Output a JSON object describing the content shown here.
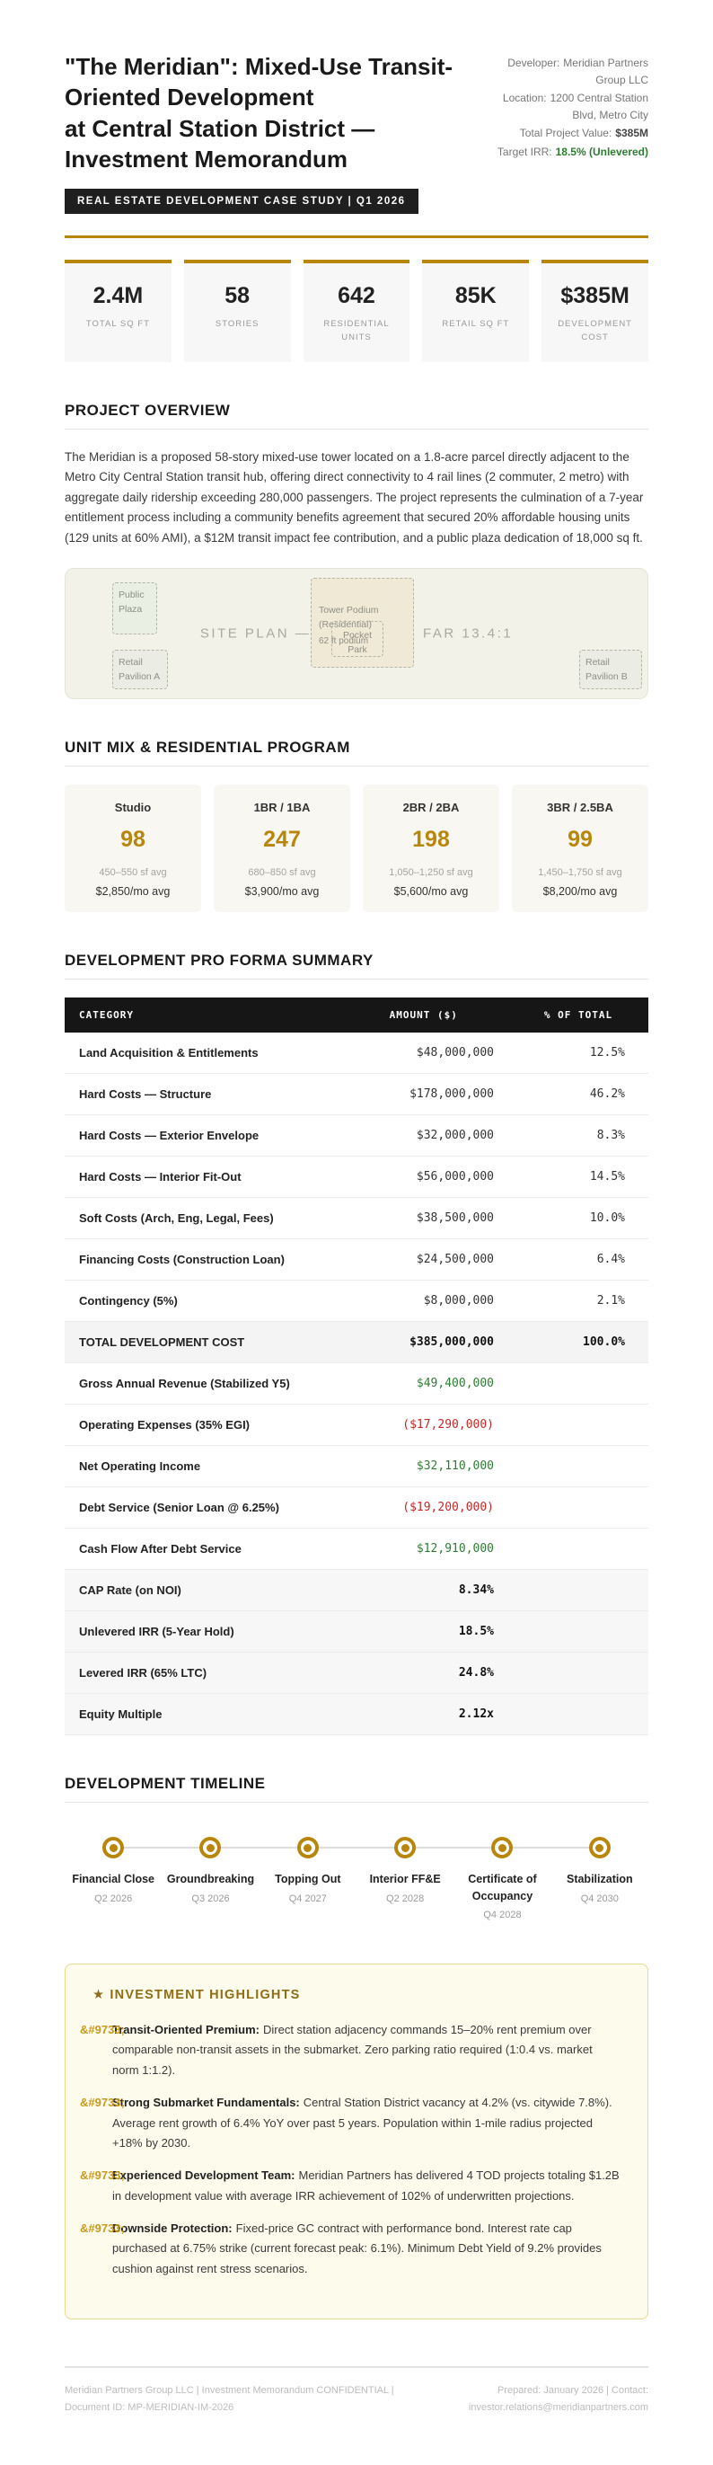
{
  "colors": {
    "accent_gold": "#b8860b",
    "header_dark": "#1a1a1a",
    "positive_green": "#2e7d32",
    "negative_red": "#c62828",
    "highlight_bg": "#fdfbec"
  },
  "header": {
    "title_line1": "\"The Meridian\": Mixed-Use Transit-Oriented Development",
    "title_line2": "at Central Station District — Investment Memorandum",
    "badge": "REAL ESTATE DEVELOPMENT CASE STUDY | Q1 2026",
    "meta": [
      {
        "label": "Developer:",
        "value": "Meridian Partners Group LLC",
        "style": "plain"
      },
      {
        "label": "Location:",
        "value": "1200 Central Station Blvd, Metro City",
        "style": "plain"
      },
      {
        "label": "Total Project Value:",
        "value": "$385M",
        "style": "bold"
      },
      {
        "label": "Target IRR:",
        "value": "18.5% (Unlevered)",
        "style": "green"
      }
    ]
  },
  "stats": [
    {
      "value": "2.4M",
      "label": "TOTAL SQ FT"
    },
    {
      "value": "58",
      "label": "STORIES"
    },
    {
      "value": "642",
      "label": "RESIDENTIAL UNITS"
    },
    {
      "value": "85K",
      "label": "RETAIL SQ FT"
    },
    {
      "value": "$385M",
      "label": "DEVELOPMENT COST"
    }
  ],
  "overview": {
    "title": "PROJECT OVERVIEW",
    "body": "The Meridian is a proposed 58-story mixed-use tower located on a 1.8-acre parcel directly adjacent to the Metro City Central Station transit hub, offering direct connectivity to 4 rail lines (2 commuter, 2 metro) with aggregate daily ridership exceeding 280,000 passengers. The project represents the culmination of a 7-year entitlement process including a community benefits agreement that secured 20% affordable housing units (129 units at 60% AMI), a $12M transit impact fee contribution, and a public plaza dedication of 18,000 sq ft."
  },
  "site_plan": {
    "caption": "SITE PLAN — 1.8 ACRES | FAR 13.4:1",
    "public_plaza": "Public Plaza",
    "tower_title": "Tower Podium (Residential)",
    "tower_sub": "62 ft podium",
    "pocket_park": "Pocket Park",
    "retail_a": "Retail Pavilion A",
    "retail_b": "Retail Pavilion B"
  },
  "unit_mix": {
    "title": "UNIT MIX & RESIDENTIAL PROGRAM",
    "units": [
      {
        "type": "Studio",
        "count": "98",
        "size": "450–550 sf avg",
        "rent": "$2,850/mo avg"
      },
      {
        "type": "1BR / 1BA",
        "count": "247",
        "size": "680–850 sf avg",
        "rent": "$3,900/mo avg"
      },
      {
        "type": "2BR / 2BA",
        "count": "198",
        "size": "1,050–1,250 sf avg",
        "rent": "$5,600/mo avg"
      },
      {
        "type": "3BR / 2.5BA",
        "count": "99",
        "size": "1,450–1,750 sf avg",
        "rent": "$8,200/mo avg"
      }
    ]
  },
  "pro_forma": {
    "title": "DEVELOPMENT PRO FORMA SUMMARY",
    "columns": [
      "CATEGORY",
      "AMOUNT ($)",
      "% OF TOTAL"
    ],
    "rows": [
      {
        "category": "Land Acquisition & Entitlements",
        "amount": "$48,000,000",
        "pct": "12.5%",
        "style": "plain"
      },
      {
        "category": "Hard Costs — Structure",
        "amount": "$178,000,000",
        "pct": "46.2%",
        "style": "plain"
      },
      {
        "category": "Hard Costs — Exterior Envelope",
        "amount": "$32,000,000",
        "pct": "8.3%",
        "style": "plain"
      },
      {
        "category": "Hard Costs — Interior Fit-Out",
        "amount": "$56,000,000",
        "pct": "14.5%",
        "style": "plain"
      },
      {
        "category": "Soft Costs (Arch, Eng, Legal, Fees)",
        "amount": "$38,500,000",
        "pct": "10.0%",
        "style": "plain"
      },
      {
        "category": "Financing Costs (Construction Loan)",
        "amount": "$24,500,000",
        "pct": "6.4%",
        "style": "plain"
      },
      {
        "category": "Contingency (5%)",
        "amount": "$8,000,000",
        "pct": "2.1%",
        "style": "plain"
      },
      {
        "category": "TOTAL DEVELOPMENT COST",
        "amount": "$385,000,000",
        "pct": "100.0%",
        "style": "total"
      },
      {
        "category": "Gross Annual Revenue (Stabilized Y5)",
        "amount": "$49,400,000",
        "pct": "",
        "style": "green"
      },
      {
        "category": "Operating Expenses (35% EGI)",
        "amount": "($17,290,000)",
        "pct": "",
        "style": "red"
      },
      {
        "category": "Net Operating Income",
        "amount": "$32,110,000",
        "pct": "",
        "style": "green"
      },
      {
        "category": "Debt Service (Senior Loan @ 6.25%)",
        "amount": "($19,200,000)",
        "pct": "",
        "style": "red"
      },
      {
        "category": "Cash Flow After Debt Service",
        "amount": "$12,910,000",
        "pct": "",
        "style": "green"
      },
      {
        "category": "CAP Rate (on NOI)",
        "amount": "8.34%",
        "pct": "",
        "style": "metric"
      },
      {
        "category": "Unlevered IRR (5-Year Hold)",
        "amount": "18.5%",
        "pct": "",
        "style": "metric"
      },
      {
        "category": "Levered IRR (65% LTC)",
        "amount": "24.8%",
        "pct": "",
        "style": "metric"
      },
      {
        "category": "Equity Multiple",
        "amount": "2.12x",
        "pct": "",
        "style": "metric"
      }
    ]
  },
  "timeline": {
    "title": "DEVELOPMENT TIMELINE",
    "milestones": [
      {
        "label": "Financial Close",
        "date": "Q2 2026"
      },
      {
        "label": "Groundbreaking",
        "date": "Q3 2026"
      },
      {
        "label": "Topping Out",
        "date": "Q4 2027"
      },
      {
        "label": "Interior FF&E",
        "date": "Q2 2028"
      },
      {
        "label": "Certificate of Occupancy",
        "date": "Q4 2028"
      },
      {
        "label": "Stabilization",
        "date": "Q4 2030"
      }
    ]
  },
  "highlights": {
    "title": "★ INVESTMENT HIGHLIGHTS",
    "marker": "&#9733;",
    "items": [
      {
        "label": "Transit-Oriented Premium:",
        "text": "Direct station adjacency commands 15–20% rent premium over comparable non-transit assets in the submarket. Zero parking ratio required (1:0.4 vs. market norm 1:1.2)."
      },
      {
        "label": "Strong Submarket Fundamentals:",
        "text": "Central Station District vacancy at 4.2% (vs. citywide 7.8%). Average rent growth of 6.4% YoY over past 5 years. Population within 1-mile radius projected +18% by 2030."
      },
      {
        "label": "Experienced Development Team:",
        "text": "Meridian Partners has delivered 4 TOD projects totaling $1.2B in development value with average IRR achievement of 102% of underwritten projections."
      },
      {
        "label": "Downside Protection:",
        "text": "Fixed-price GC contract with performance bond. Interest rate cap purchased at 6.75% strike (current forecast peak: 6.1%). Minimum Debt Yield of 9.2% provides cushion against rent stress scenarios."
      }
    ]
  },
  "footer": {
    "left": "Meridian Partners Group LLC | Investment Memorandum CONFIDENTIAL | Document ID: MP-MERIDIAN-IM-2026",
    "right": "Prepared: January 2026 | Contact: investor.relations@meridianpartners.com"
  }
}
